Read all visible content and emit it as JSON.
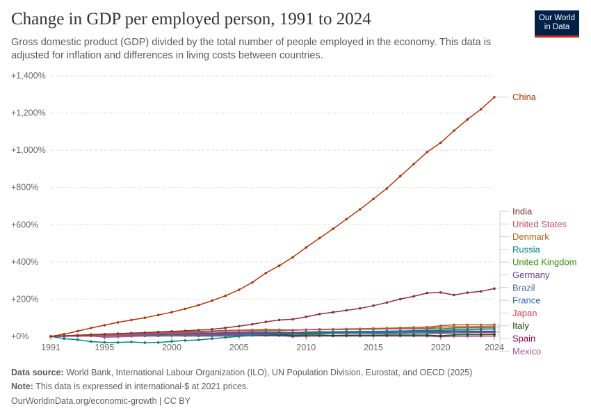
{
  "header": {
    "title": "Change in GDP per employed person, 1991 to 2024",
    "subtitle": "Gross domestic product (GDP) divided by the total number of people employed in the economy. This data is adjusted for inflation and differences in living costs between countries.",
    "logo_line1": "Our World",
    "logo_line2": "in Data"
  },
  "footer": {
    "source_label": "Data source:",
    "source_text": "World Bank, International Labour Organization (ILO), UN Population Division, Eurostat, and OECD (2025)",
    "note_label": "Note:",
    "note_text": "This data is expressed in international-$ at 2021 prices.",
    "url_text": "OurWorldinData.org/economic-growth | CC BY"
  },
  "chart_data": {
    "type": "line",
    "ylim": [
      0,
      1400
    ],
    "xlim": [
      1991,
      2024
    ],
    "y_ticks": [
      0,
      200,
      400,
      600,
      800,
      1000,
      1200,
      1400
    ],
    "y_tick_labels": [
      "+0%",
      "+200%",
      "+400%",
      "+600%",
      "+800%",
      "+1,000%",
      "+1,200%",
      "+1,400%"
    ],
    "x_ticks": [
      1991,
      1995,
      2000,
      2005,
      2010,
      2015,
      2020,
      2024
    ],
    "x_tick_labels": [
      "1991",
      "1995",
      "2000",
      "2005",
      "2010",
      "2015",
      "2020",
      "2024"
    ],
    "grid": true,
    "legend": "right, labels at line ends",
    "x": [
      1991,
      1992,
      1993,
      1994,
      1995,
      1996,
      1997,
      1998,
      1999,
      2000,
      2001,
      2002,
      2003,
      2004,
      2005,
      2006,
      2007,
      2008,
      2009,
      2010,
      2011,
      2012,
      2013,
      2014,
      2015,
      2016,
      2017,
      2018,
      2019,
      2020,
      2021,
      2022,
      2023,
      2024
    ],
    "series": [
      {
        "name": "China",
        "color": "#b13507",
        "values": [
          0,
          12,
          28,
          45,
          60,
          75,
          88,
          100,
          115,
          130,
          148,
          168,
          192,
          218,
          250,
          290,
          340,
          380,
          425,
          478,
          528,
          578,
          630,
          682,
          738,
          795,
          860,
          925,
          990,
          1040,
          1105,
          1165,
          1220,
          1285
        ]
      },
      {
        "name": "India",
        "color": "#883039",
        "values": [
          0,
          3,
          6,
          8,
          12,
          15,
          18,
          20,
          24,
          27,
          30,
          34,
          38,
          46,
          55,
          65,
          78,
          88,
          92,
          105,
          120,
          130,
          140,
          150,
          165,
          182,
          200,
          215,
          233,
          236,
          222,
          235,
          242,
          257
        ]
      },
      {
        "name": "United States",
        "color": "#c15065",
        "values": [
          0,
          2,
          3,
          5,
          6,
          8,
          10,
          12,
          15,
          17,
          19,
          22,
          25,
          28,
          30,
          31,
          32,
          32,
          33,
          36,
          37,
          38,
          38,
          39,
          40,
          40,
          41,
          42,
          44,
          50,
          52,
          52,
          53,
          55
        ]
      },
      {
        "name": "Denmark",
        "color": "#b16214",
        "values": [
          0,
          3,
          6,
          8,
          10,
          12,
          14,
          16,
          18,
          21,
          22,
          24,
          27,
          30,
          32,
          34,
          35,
          34,
          33,
          36,
          38,
          39,
          40,
          41,
          43,
          44,
          46,
          48,
          50,
          57,
          62,
          62,
          62,
          63
        ]
      },
      {
        "name": "Russia",
        "color": "#00847e",
        "values": [
          0,
          -12,
          -18,
          -28,
          -32,
          -33,
          -30,
          -34,
          -33,
          -27,
          -22,
          -19,
          -12,
          -6,
          0,
          8,
          15,
          18,
          12,
          18,
          22,
          25,
          26,
          27,
          26,
          27,
          29,
          31,
          33,
          32,
          36,
          36,
          38,
          40
        ]
      },
      {
        "name": "United Kingdom",
        "color": "#3c8d0e",
        "values": [
          0,
          3,
          6,
          10,
          12,
          14,
          16,
          18,
          21,
          24,
          25,
          27,
          29,
          32,
          33,
          35,
          37,
          36,
          34,
          36,
          36,
          37,
          37,
          38,
          39,
          40,
          41,
          41,
          42,
          40,
          45,
          46,
          46,
          47
        ]
      },
      {
        "name": "Germany",
        "color": "#6d3e91",
        "values": [
          0,
          3,
          5,
          7,
          9,
          10,
          12,
          13,
          14,
          16,
          17,
          17,
          18,
          20,
          21,
          23,
          24,
          23,
          20,
          23,
          25,
          25,
          25,
          26,
          27,
          28,
          29,
          29,
          29,
          27,
          29,
          29,
          28,
          28
        ]
      },
      {
        "name": "Brazil",
        "color": "#4c6a9c",
        "values": [
          0,
          0,
          2,
          4,
          5,
          5,
          6,
          5,
          4,
          5,
          5,
          5,
          4,
          6,
          7,
          9,
          11,
          13,
          12,
          15,
          16,
          16,
          18,
          17,
          15,
          15,
          16,
          17,
          18,
          20,
          18,
          20,
          22,
          24
        ]
      },
      {
        "name": "France",
        "color": "#286bbb",
        "values": [
          0,
          2,
          3,
          5,
          6,
          7,
          9,
          10,
          11,
          13,
          13,
          14,
          15,
          16,
          17,
          18,
          19,
          18,
          17,
          19,
          20,
          20,
          20,
          21,
          22,
          22,
          23,
          24,
          24,
          22,
          25,
          25,
          25,
          26
        ]
      },
      {
        "name": "Japan",
        "color": "#d73c50",
        "values": [
          0,
          1,
          1,
          2,
          3,
          4,
          5,
          4,
          5,
          7,
          8,
          9,
          10,
          12,
          13,
          14,
          15,
          14,
          12,
          15,
          15,
          16,
          16,
          16,
          17,
          17,
          18,
          18,
          17,
          16,
          18,
          19,
          19,
          20
        ]
      },
      {
        "name": "Italy",
        "color": "#18470f",
        "values": [
          0,
          2,
          3,
          5,
          6,
          7,
          8,
          9,
          9,
          10,
          10,
          9,
          9,
          9,
          9,
          10,
          10,
          8,
          5,
          7,
          7,
          5,
          6,
          6,
          6,
          7,
          7,
          7,
          7,
          3,
          8,
          9,
          9,
          10
        ]
      },
      {
        "name": "Spain",
        "color": "#970046",
        "values": [
          0,
          2,
          3,
          5,
          6,
          6,
          6,
          6,
          6,
          6,
          6,
          6,
          6,
          6,
          6,
          6,
          6,
          8,
          12,
          13,
          14,
          16,
          18,
          18,
          18,
          18,
          18,
          18,
          18,
          16,
          18,
          19,
          20,
          21
        ]
      },
      {
        "name": "Mexico",
        "color": "#a2559c",
        "values": [
          0,
          2,
          3,
          3,
          -5,
          -3,
          0,
          2,
          3,
          5,
          3,
          2,
          2,
          4,
          4,
          6,
          6,
          4,
          -2,
          0,
          2,
          2,
          2,
          2,
          3,
          2,
          2,
          2,
          1,
          -2,
          0,
          0,
          1,
          2
        ]
      }
    ]
  }
}
